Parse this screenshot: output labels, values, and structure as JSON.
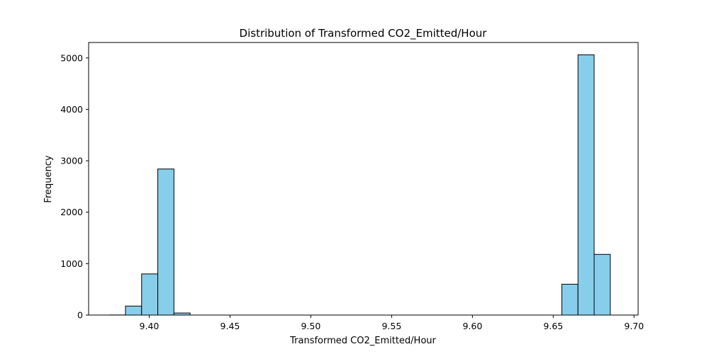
{
  "chart_data": {
    "type": "bar",
    "title": "Distribution of Transformed CO2_Emitted/Hour",
    "xlabel": "Transformed CO2_Emitted/Hour",
    "ylabel": "Frequency",
    "xlim": [
      9.3625,
      9.7025
    ],
    "ylim": [
      0,
      5300
    ],
    "xticks": [
      9.4,
      9.45,
      9.5,
      9.55,
      9.6,
      9.65,
      9.7
    ],
    "xtick_labels": [
      "9.40",
      "9.45",
      "9.50",
      "9.55",
      "9.60",
      "9.65",
      "9.70"
    ],
    "yticks": [
      0,
      1000,
      2000,
      3000,
      4000,
      5000
    ],
    "ytick_labels": [
      "0",
      "1000",
      "2000",
      "3000",
      "4000",
      "5000"
    ],
    "bin_edges": [
      9.3753,
      9.3853,
      9.3953,
      9.4053,
      9.4153,
      9.4253,
      9.4353,
      9.4453,
      9.4553,
      9.4653,
      9.4753,
      9.4853,
      9.4953,
      9.5053,
      9.5153,
      9.5253,
      9.5353,
      9.5453,
      9.5553,
      9.5653,
      9.5753,
      9.5853,
      9.5953,
      9.6053,
      9.6153,
      9.6253,
      9.6353,
      9.6453,
      9.6553,
      9.6653,
      9.6753,
      9.6853
    ],
    "counts": [
      2,
      175,
      800,
      2840,
      40,
      0,
      0,
      0,
      0,
      0,
      0,
      0,
      0,
      0,
      0,
      0,
      0,
      0,
      0,
      0,
      0,
      0,
      0,
      0,
      0,
      0,
      0,
      0,
      600,
      5060,
      1180
    ],
    "grid": false,
    "bar_color": "#87ceeb",
    "edge_color": "#000000"
  }
}
